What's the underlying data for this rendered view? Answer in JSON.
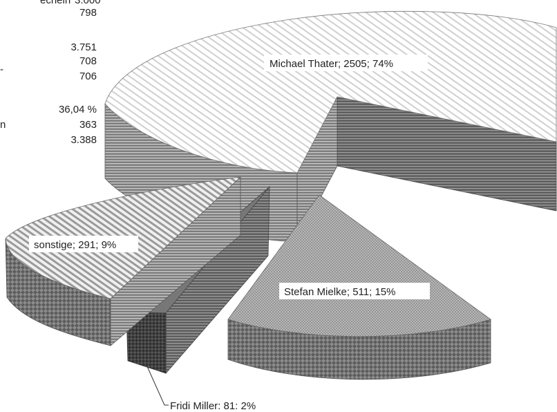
{
  "left_table": {
    "cut_text_1": "ecnein",
    "cut_value_1": "3.000",
    "values": [
      "798",
      "3.751",
      "708",
      "706",
      "36,04 %",
      "363",
      "3.388"
    ],
    "cut_text_2": "-",
    "cut_text_3": "n"
  },
  "chart_data": {
    "type": "pie",
    "style": "3d-exploded",
    "title": "",
    "legend": "none",
    "slices": [
      {
        "name": "Michael Thater",
        "value": 2505,
        "percent": "74%",
        "label": "Michael Thater; 2505; 74%"
      },
      {
        "name": "Stefan Mielke",
        "value": 511,
        "percent": "15%",
        "label": "Stefan Mielke; 511; 15%"
      },
      {
        "name": "Fridi Miller",
        "value": 81,
        "percent": "2%",
        "label": "Fridi Miller: 81: 2%"
      },
      {
        "name": "sonstige",
        "value": 291,
        "percent": "9%",
        "label": "sonstige; 291; 9%"
      }
    ],
    "colors": {
      "dark_side": "#6e6e6e",
      "mid_side": "#8a8a8a",
      "top_light": "#f2f2f2",
      "top_mid": "#c8c8c8",
      "dark_block": "#4a4a4a"
    }
  }
}
